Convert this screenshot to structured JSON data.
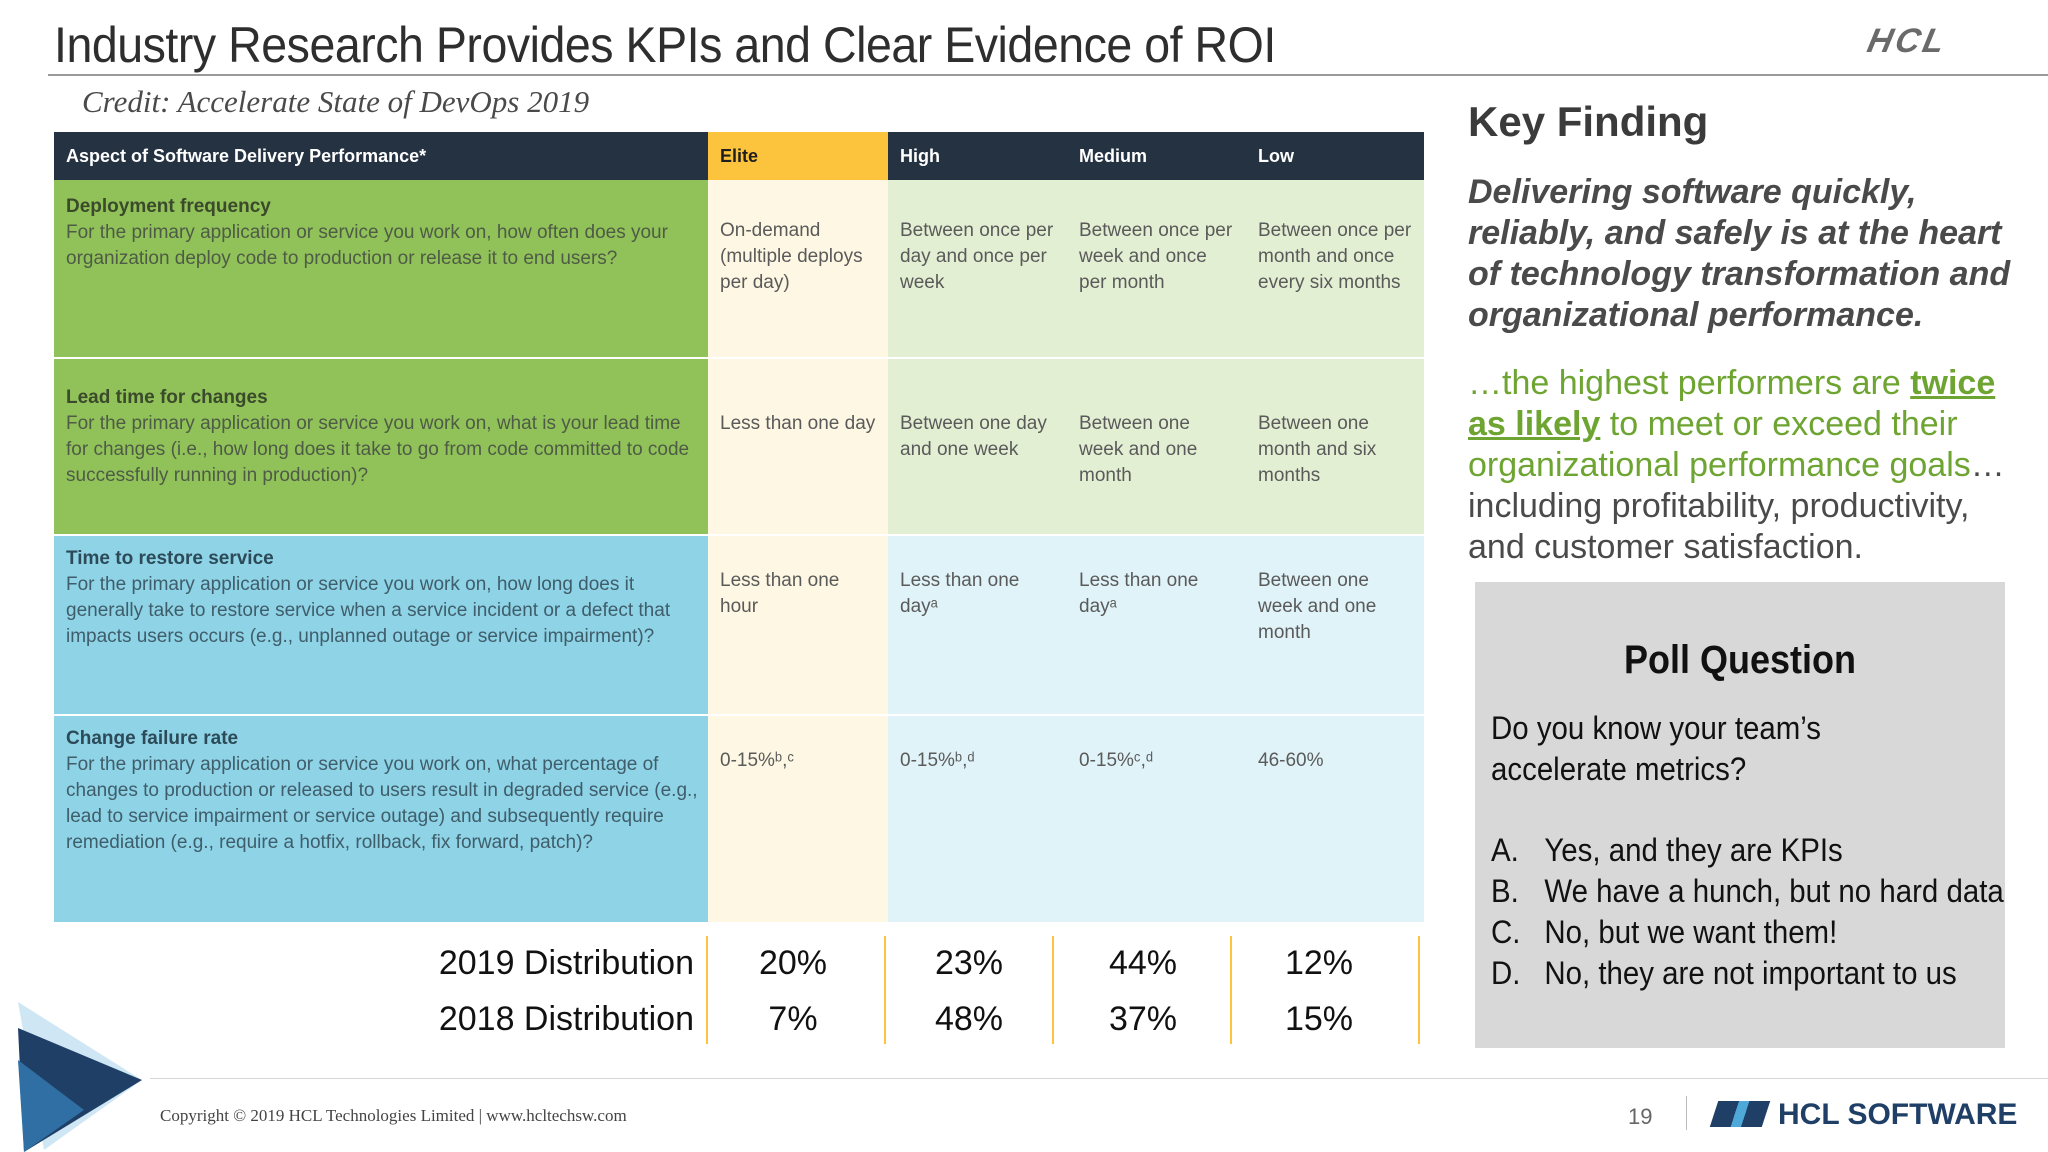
{
  "slide": {
    "title": "Industry Research Provides KPIs and Clear Evidence of ROI",
    "logo_top": "HCL",
    "credit": "Credit: Accelerate State of DevOps 2019"
  },
  "table": {
    "headers": {
      "aspect": "Aspect of Software Delivery Performance*",
      "elite": "Elite",
      "high": "High",
      "medium": "Medium",
      "low": "Low"
    },
    "rows": [
      {
        "title": "Deployment frequency",
        "description": "For the primary application or service you work on, how often does your organization deploy code to production or release it to end users?",
        "elite": "On-demand (multiple deploys per day)",
        "high": "Between once per day and once per week",
        "medium": "Between once per week and once per month",
        "low": "Between once per month and once every six months"
      },
      {
        "title": "Lead time for changes",
        "description": "For the primary application or service you work on, what is your lead time for changes (i.e., how long does it take to go from code committed to code successfully running in production)?",
        "elite": "Less than one day",
        "high": "Between one day and one week",
        "medium": "Between one week and one month",
        "low": "Between one month and six months"
      },
      {
        "title": "Time to restore service",
        "description": "For the primary application or service you work on, how long does it generally take to restore service when a service incident or a defect that impacts users occurs (e.g., unplanned outage or service impairment)?",
        "elite": "Less than one hour",
        "high": "Less than one dayᵃ",
        "medium": "Less than one dayᵃ",
        "low": "Between one week and one month"
      },
      {
        "title": "Change failure rate",
        "description": "For the primary application or service you work on, what percentage of changes to production or released to users result in degraded service (e.g., lead to service impairment or service outage) and subsequently require remediation (e.g., require a hotfix, rollback, fix forward, patch)?",
        "elite": "0-15%ᵇ,ᶜ",
        "high": "0-15%ᵇ,ᵈ",
        "medium": "0-15%ᶜ,ᵈ",
        "low": "46-60%"
      }
    ],
    "distribution": [
      {
        "label": "2019 Distribution",
        "elite": "20%",
        "high": "23%",
        "medium": "44%",
        "low": "12%"
      },
      {
        "label": "2018 Distribution",
        "elite": "7%",
        "high": "48%",
        "medium": "37%",
        "low": "15%"
      }
    ]
  },
  "key_finding": {
    "heading": "Key Finding",
    "statement": "Delivering software quickly, reliably, and safely is at the heart of technology transformation and organizational performance.",
    "body_green_1": "…the highest performers are ",
    "body_emphasis": "twice as likely",
    "body_green_2": " to meet or exceed their organizational performance goals",
    "body_rest": "… including profitability, productivity, and customer satisfaction."
  },
  "poll": {
    "title": "Poll Question",
    "question": "Do you know your team’s accelerate metrics?",
    "options": [
      {
        "letter": "A.",
        "text": "Yes, and they are KPIs"
      },
      {
        "letter": "B.",
        "text": "We have a hunch, but no hard data"
      },
      {
        "letter": "C.",
        "text": "No, but we want them!"
      },
      {
        "letter": "D.",
        "text": "No, they are not important to us"
      }
    ]
  },
  "footer": {
    "copyright": "Copyright © 2019 HCL Technologies Limited  |  www.hcltechsw.com",
    "page_number": "19",
    "brand": "HCL SOFTWARE"
  },
  "colors": {
    "header_bg": "#243242",
    "elite_header": "#fcc33c",
    "green_dark": "#91c25a",
    "green_light": "#e3efd3",
    "blue_dark": "#8ed3e6",
    "blue_light": "#e0f3f8",
    "accent_green_text": "#6ea431",
    "poll_bg": "#d8d8d8"
  }
}
